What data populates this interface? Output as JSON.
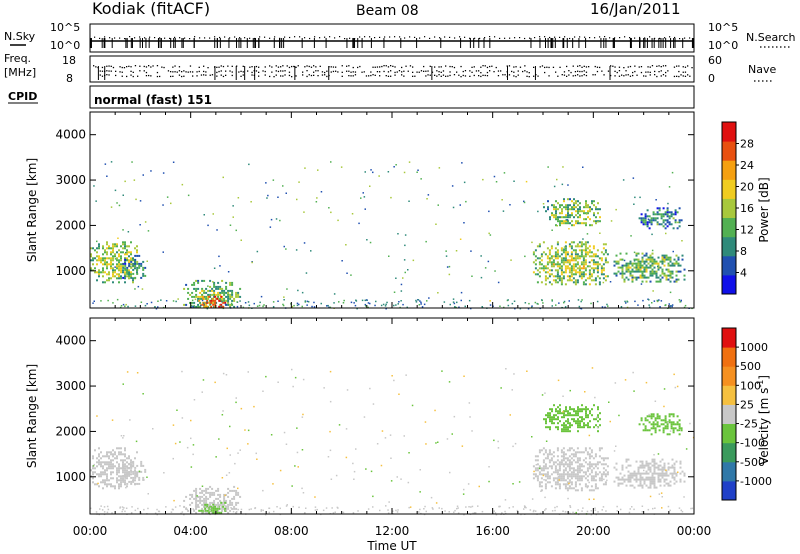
{
  "header": {
    "radar": "Kodiak (fitACF)",
    "beam": "Beam 08",
    "date": "16/Jan/2011"
  },
  "nsky_panel": {
    "left_label": "N.Sky",
    "right_label": "N.Search",
    "left_ticks": [
      "10^5",
      "10^0"
    ],
    "right_ticks": [
      "10^5",
      "10^0"
    ]
  },
  "freq_panel": {
    "left_label_1": "Freq.",
    "left_label_2": "[MHz]",
    "right_label": "Nave",
    "left_ticks": [
      "18",
      "8"
    ],
    "right_ticks": [
      "60",
      "0"
    ]
  },
  "cpid": {
    "label": "CPID",
    "mode_text": "normal (fast) 151"
  },
  "chart_data": [
    {
      "type": "heatmap",
      "title": "",
      "quantity": "Power",
      "ylabel": "Slant Range [km]",
      "xlabel": "",
      "ylim": [
        180,
        4500
      ],
      "xlim": [
        0,
        24
      ],
      "y_ticks": [
        "1000",
        "2000",
        "3000",
        "4000"
      ],
      "colorbar": {
        "label": "Power [dB]",
        "ticks": [
          "4",
          "8",
          "12",
          "16",
          "20",
          "24",
          "28"
        ],
        "range": [
          0,
          32
        ],
        "colors": [
          "#1010e8",
          "#2050b0",
          "#2f8a7a",
          "#52b052",
          "#a8c83c",
          "#f0cc20",
          "#f5a010",
          "#e85010",
          "#e01010"
        ]
      },
      "echo_regions": [
        {
          "t0": 0.0,
          "t1": 1.9,
          "r0": 750,
          "r1": 1650,
          "level": 16
        },
        {
          "t0": 1.2,
          "t1": 2.2,
          "r0": 850,
          "r1": 1350,
          "level": 10
        },
        {
          "t0": 3.7,
          "t1": 6.0,
          "r0": 200,
          "r1": 800,
          "level": 14
        },
        {
          "t0": 4.3,
          "t1": 5.4,
          "r0": 200,
          "r1": 450,
          "level": 29
        },
        {
          "t0": 17.6,
          "t1": 20.6,
          "r0": 700,
          "r1": 1650,
          "level": 16
        },
        {
          "t0": 18.0,
          "t1": 20.3,
          "r0": 2000,
          "r1": 2600,
          "level": 15
        },
        {
          "t0": 20.8,
          "t1": 23.6,
          "r0": 750,
          "r1": 1400,
          "level": 14
        },
        {
          "t0": 21.8,
          "t1": 23.5,
          "r0": 1950,
          "r1": 2400,
          "level": 10
        }
      ]
    },
    {
      "type": "heatmap",
      "title": "",
      "quantity": "Velocity",
      "ylabel": "Slant Range [km]",
      "xlabel": "Time UT",
      "ylim": [
        180,
        4500
      ],
      "xlim": [
        0,
        24
      ],
      "y_ticks": [
        "1000",
        "2000",
        "3000",
        "4000"
      ],
      "x_ticks": [
        "00:00",
        "04:00",
        "08:00",
        "12:00",
        "16:00",
        "20:00",
        "00:00"
      ],
      "colorbar": {
        "label": "Velocity [m s",
        "label_sup": "-1",
        "label_end": "]",
        "ticks": [
          "1000",
          "500",
          "100",
          "25",
          "-25",
          "-100",
          "-500",
          "-1000"
        ],
        "range": [
          -1000,
          1000
        ],
        "colors": [
          "#2040c8",
          "#3078a8",
          "#3a9a5c",
          "#6ac43c",
          "#c8c8c8",
          "#f5c040",
          "#f59020",
          "#f07010",
          "#e01010"
        ]
      },
      "echo_regions": [
        {
          "t0": 0.0,
          "t1": 1.9,
          "r0": 750,
          "r1": 1650,
          "level": 0
        },
        {
          "t0": 1.2,
          "t1": 2.2,
          "r0": 850,
          "r1": 1350,
          "level": -60
        },
        {
          "t0": 3.7,
          "t1": 6.0,
          "r0": 200,
          "r1": 800,
          "level": 0
        },
        {
          "t0": 4.3,
          "t1": 5.4,
          "r0": 200,
          "r1": 450,
          "level": -150
        },
        {
          "t0": 17.6,
          "t1": 20.6,
          "r0": 700,
          "r1": 1650,
          "level": 0
        },
        {
          "t0": 18.0,
          "t1": 20.3,
          "r0": 2000,
          "r1": 2600,
          "level": -150
        },
        {
          "t0": 20.8,
          "t1": 23.6,
          "r0": 750,
          "r1": 1400,
          "level": 0
        },
        {
          "t0": 21.8,
          "t1": 23.5,
          "r0": 1950,
          "r1": 2400,
          "level": -200
        }
      ]
    }
  ]
}
